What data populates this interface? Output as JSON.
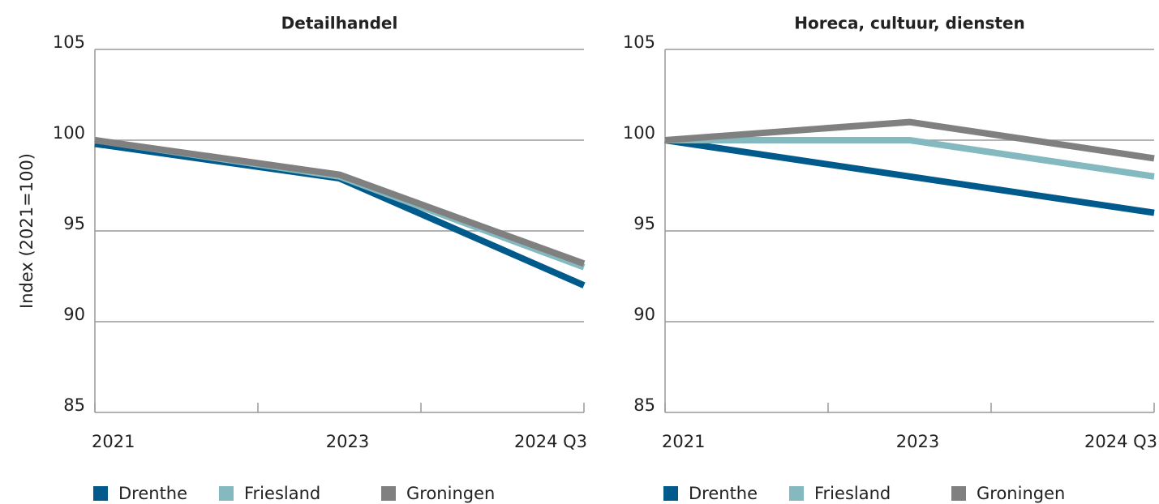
{
  "chart_data": [
    {
      "type": "line",
      "title": "Detailhandel",
      "y_label": "Index (2021=100)",
      "categories": [
        "2021",
        "2023",
        "2024 Q3"
      ],
      "series": [
        {
          "name": "Drenthe",
          "color": "#005a8c",
          "values": [
            99.8,
            97.9,
            92.0
          ]
        },
        {
          "name": "Friesland",
          "color": "#84b9bf",
          "values": [
            100,
            98.0,
            93.0
          ]
        },
        {
          "name": "Groningen",
          "color": "#808080",
          "values": [
            100,
            98.1,
            93.2
          ]
        }
      ],
      "ylim": [
        85,
        105
      ],
      "yticks": [
        85,
        90,
        95,
        100,
        105
      ],
      "grid": true,
      "legend": "bottom"
    },
    {
      "type": "line",
      "title": "Horeca, cultuur, diensten",
      "categories": [
        "2021",
        "2023",
        "2024 Q3"
      ],
      "series": [
        {
          "name": "Drenthe",
          "color": "#005a8c",
          "values": [
            100,
            98.0,
            96.0
          ]
        },
        {
          "name": "Friesland",
          "color": "#84b9bf",
          "values": [
            100,
            100,
            98.0
          ]
        },
        {
          "name": "Groningen",
          "color": "#808080",
          "values": [
            100,
            101,
            99.0
          ]
        }
      ],
      "ylim": [
        85,
        105
      ],
      "yticks": [
        85,
        90,
        95,
        100,
        105
      ],
      "grid": true,
      "legend": "bottom"
    }
  ]
}
